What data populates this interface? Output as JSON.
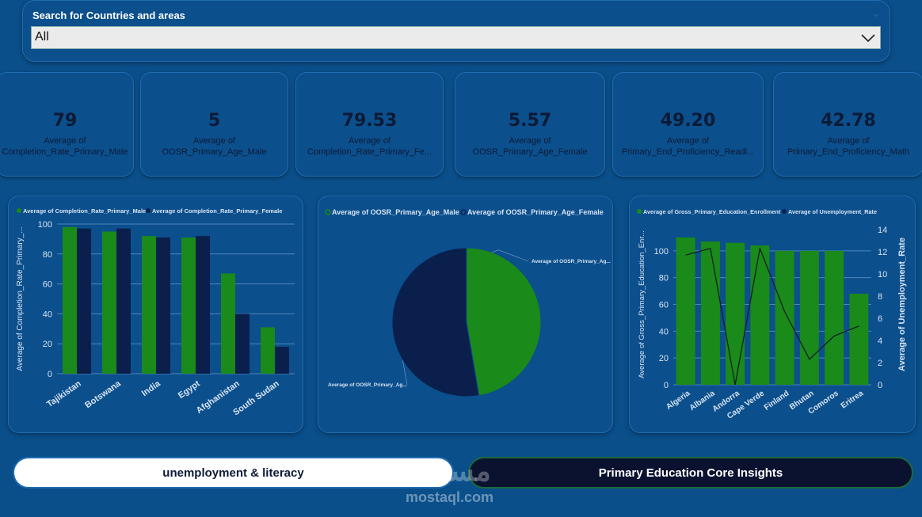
{
  "filter": {
    "title": "Search for Countries and areas",
    "value": "All"
  },
  "cards": [
    {
      "value": "79",
      "label1": "Average of",
      "label2": "Completion_Rate_Primary_Male"
    },
    {
      "value": "5",
      "label1": "Average of",
      "label2": "OOSR_Primary_Age_Male"
    },
    {
      "value": "79.53",
      "label1": "Average of",
      "label2": "Completion_Rate_Primary_Fe..."
    },
    {
      "value": "5.57",
      "label1": "Average of",
      "label2": "OOSR_Primary_Age_Female"
    },
    {
      "value": "49.20",
      "label1": "Average of",
      "label2": "Primary_End_Proficiency_Readi..."
    },
    {
      "value": "42.78",
      "label1": "Average of",
      "label2": "Primary_End_Proficiency_Math"
    }
  ],
  "colors": {
    "green": "#1a8a1a",
    "navy": "#0b1f4d",
    "dark_line": "#101828"
  },
  "chart_data": [
    {
      "type": "bar",
      "legend": [
        "Average of Completion_Rate_Primary_Male",
        "Average of Completion_Rate_Primary_Female"
      ],
      "ylabel": "Average of Completion_Rate_Primary_...",
      "categories": [
        "Tajikistan",
        "Botswana",
        "India",
        "Egypt",
        "Afghanistan",
        "South Sudan"
      ],
      "series": [
        {
          "name": "Average of Completion_Rate_Primary_Male",
          "values": [
            98,
            95,
            92,
            91,
            67,
            31
          ]
        },
        {
          "name": "Average of Completion_Rate_Primary_Female",
          "values": [
            97,
            97,
            91,
            92,
            40,
            18
          ]
        }
      ],
      "ylim": [
        0,
        100
      ],
      "yticks": [
        0,
        20,
        40,
        60,
        80,
        100
      ]
    },
    {
      "type": "pie",
      "legend": [
        "Average of OOSR_Primary_Age_Male",
        "Average of OOSR_Primary_Age_Female"
      ],
      "values": [
        5,
        5.57
      ],
      "labels": [
        "Average of OOSR_Primary_Ag...",
        "Average of OOSR_Primary_Ag..."
      ]
    },
    {
      "type": "bar",
      "legend": [
        "Average of Gross_Primary_Education_Enrollment",
        "Average of Unemployment_Rate"
      ],
      "ylabel": "Average of Gross_Primary_Education_Enr...",
      "y2label": "Average of Unemployment_Rate",
      "categories": [
        "Algeria",
        "Albania",
        "Andorra",
        "Cape Verde",
        "Finland",
        "Bhutan",
        "Comoros",
        "Eritrea"
      ],
      "series": [
        {
          "name": "Average of Gross_Primary_Education_Enrollment",
          "type": "bar",
          "values": [
            110,
            107,
            106,
            104,
            100,
            100,
            100,
            68
          ]
        },
        {
          "name": "Average of Unemployment_Rate",
          "type": "line",
          "axis": "right",
          "values": [
            11.7,
            12.3,
            0,
            12.3,
            6.6,
            2.3,
            4.4,
            5.3
          ]
        }
      ],
      "ylim": [
        0,
        120
      ],
      "yticks": [
        0,
        20,
        40,
        60,
        80,
        100
      ],
      "y2lim": [
        0,
        14.5
      ],
      "y2ticks": [
        0,
        2,
        4,
        6,
        8,
        10,
        12,
        14
      ]
    }
  ],
  "buttons": {
    "left": "unemployment & literacy",
    "right": "Primary Education Core Insights"
  },
  "watermark": {
    "arabic": "مستقل",
    "latin": "mostaql.com"
  }
}
